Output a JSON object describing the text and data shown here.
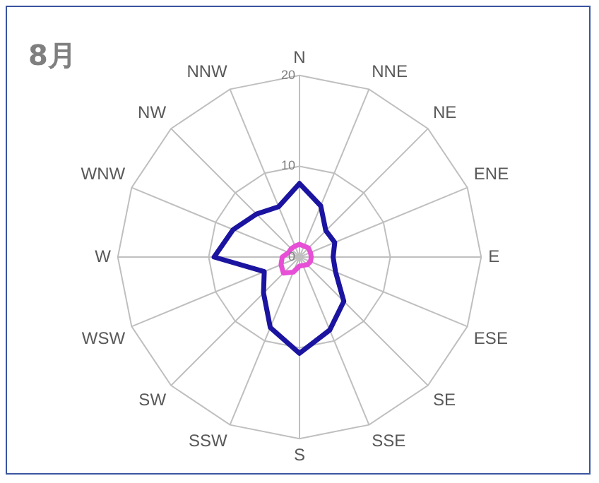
{
  "chart_data": {
    "type": "radar",
    "title": "8月",
    "categories": [
      "N",
      "NNE",
      "NE",
      "ENE",
      "E",
      "ESE",
      "SE",
      "SSE",
      "S",
      "SSW",
      "SW",
      "WSW",
      "W",
      "WNW",
      "NW",
      "NNW"
    ],
    "series": [
      {
        "color": "#1a14a0",
        "values": [
          8.1,
          6.1,
          4.1,
          4.2,
          3.7,
          4.3,
          6.9,
          8.7,
          10.6,
          8.4,
          5.6,
          4.2,
          9.4,
          7.9,
          6.7,
          6.0
        ]
      },
      {
        "color": "#e64fd6",
        "values": [
          1.4,
          1.3,
          1.4,
          1.3,
          1.3,
          1.3,
          1.2,
          1.0,
          1.0,
          1.8,
          2.5,
          2.2,
          1.9,
          1.3,
          1.3,
          1.3
        ]
      }
    ],
    "ylim": [
      0,
      20
    ],
    "yticks": [
      0,
      10,
      20
    ],
    "grid": true,
    "legend": false,
    "marker": "none"
  }
}
